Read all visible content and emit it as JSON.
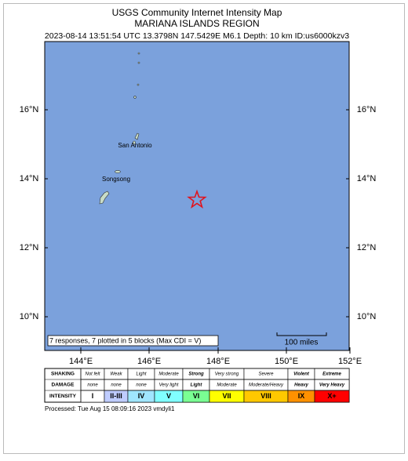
{
  "header": {
    "title": "USGS Community Internet Intensity Map",
    "region": "MARIANA ISLANDS REGION",
    "event": "2023-08-14 13:51:54 UTC 13.3798N 147.5429E M6.1 Depth: 10 km ID:us6000kzv3"
  },
  "map": {
    "lat_labels": [
      "16°N",
      "14°N",
      "12°N",
      "10°N"
    ],
    "lon_labels": [
      "144°E",
      "146°E",
      "148°E",
      "150°E",
      "152°E"
    ],
    "places": [
      "San Antonio",
      "Songsong"
    ],
    "responses": "7 responses, 7 plotted in 5 blocks (Max CDI = V)",
    "scale": "100 miles"
  },
  "legend": {
    "row_labels": [
      "SHAKING",
      "DAMAGE",
      "INTENSITY"
    ],
    "shaking": [
      "Not felt",
      "Weak",
      "Light",
      "Moderate",
      "Strong",
      "Very strong",
      "Severe",
      "Violent",
      "Extreme"
    ],
    "damage": [
      "none",
      "none",
      "none",
      "Very light",
      "Light",
      "Moderate",
      "Moderate/Heavy",
      "Heavy",
      "Very Heavy"
    ],
    "intensity": [
      "I",
      "II-III",
      "IV",
      "V",
      "VI",
      "VII",
      "VIII",
      "IX",
      "X+"
    ],
    "colors": [
      "#ffffff",
      "#bfccff",
      "#a0e6ff",
      "#80ffff",
      "#7aff93",
      "#ffff00",
      "#ffc800",
      "#ff9100",
      "#ff0000"
    ]
  },
  "footer": "Processed: Tue Aug 15 08:09:16 2023 vmdyli1"
}
